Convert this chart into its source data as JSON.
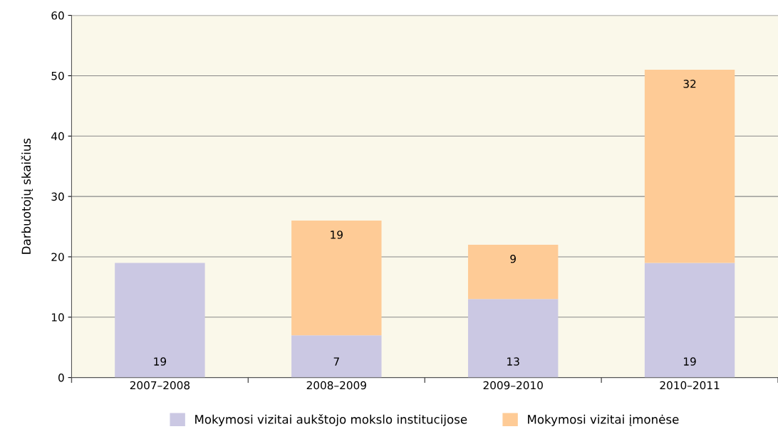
{
  "chart_data": {
    "type": "bar",
    "stacked": true,
    "ylabel": "Darbuotojų skaičius",
    "categories": [
      "2007–2008",
      "2008–2009",
      "2009–2010",
      "2010–2011"
    ],
    "series": [
      {
        "name": "Mokymosi vizitai aukštojo mokslo institucijose",
        "color": "#cbc8e3",
        "values": [
          19,
          7,
          13,
          19
        ],
        "value_labels": [
          "19",
          "7",
          "13",
          "19"
        ]
      },
      {
        "name": "Mokymosi vizitai įmonėse",
        "color": "#fecb96",
        "values": [
          null,
          19,
          9,
          32
        ],
        "value_labels": [
          null,
          "19",
          "9",
          "32"
        ]
      }
    ],
    "ylim": [
      0,
      60
    ],
    "yticks": [
      0,
      10,
      20,
      30,
      40,
      50,
      60
    ],
    "grid": "y",
    "legend": "bottom"
  }
}
